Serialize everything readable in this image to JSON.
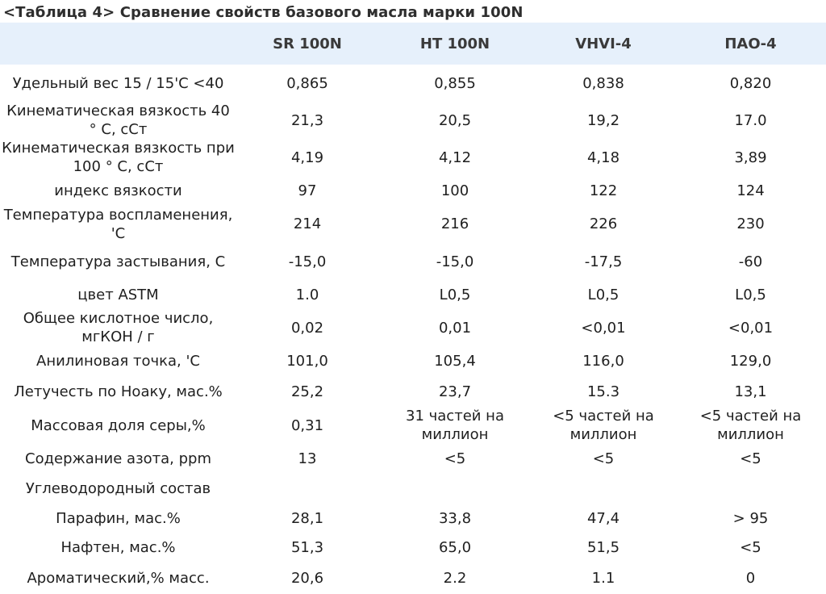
{
  "title": "<Таблица 4> Сравнение свойств базового масла марки 100N",
  "columns": [
    "",
    "SR 100N",
    "HT 100N",
    "VHVI-4",
    "ПАО-4"
  ],
  "rows": [
    {
      "label": "Удельный вес 15 / 15'C <40",
      "values": [
        "0,865",
        "0,855",
        "0,838",
        "0,820"
      ]
    },
    {
      "label": "Кинематическая вязкость 40 ° С, сСт",
      "values": [
        "21,3",
        "20,5",
        "19,2",
        "17.0"
      ]
    },
    {
      "label": "Кинематическая вязкость при 100 ° С, сСт",
      "values": [
        "4,19",
        "4,12",
        "4,18",
        "3,89"
      ]
    },
    {
      "label": "индекс вязкости",
      "values": [
        "97",
        "100",
        "122",
        "124"
      ]
    },
    {
      "label": "Температура воспламенения, 'С",
      "values": [
        "214",
        "216",
        "226",
        "230"
      ]
    },
    {
      "label": "Температура застывания, С",
      "values": [
        "-15,0",
        "-15,0",
        "-17,5",
        "-60"
      ]
    },
    {
      "label": "цвет ASTM",
      "values": [
        "1.0",
        "L0,5",
        "L0,5",
        "L0,5"
      ]
    },
    {
      "label": "Общее кислотное число, мгКОН / г",
      "values": [
        "0,02",
        "0,01",
        "<0,01",
        "<0,01"
      ]
    },
    {
      "label": "Анилиновая точка, 'С",
      "values": [
        "101,0",
        "105,4",
        "116,0",
        "129,0"
      ]
    },
    {
      "label": "Летучесть по Ноаку, мас.%",
      "values": [
        "25,2",
        "23,7",
        "15.3",
        "13,1"
      ]
    },
    {
      "label": "Массовая доля серы,%",
      "values": [
        "0,31",
        "31 частей на миллион",
        "<5 частей на миллион",
        "<5 частей на миллион"
      ]
    },
    {
      "label": "Содержание азота, ppm",
      "values": [
        "13",
        "<5",
        "<5",
        "<5"
      ]
    },
    {
      "label": "Углеводородный состав",
      "values": [
        "",
        "",
        "",
        ""
      ]
    },
    {
      "label": "Парафин, мас.%",
      "values": [
        "28,1",
        "33,8",
        "47,4",
        "> 95"
      ]
    },
    {
      "label": "Нафтен, мас.%",
      "values": [
        "51,3",
        "65,0",
        "51,5",
        "<5"
      ]
    },
    {
      "label": "Ароматический,% масс.",
      "values": [
        "20,6",
        "2.2",
        "1.1",
        "0"
      ]
    }
  ]
}
